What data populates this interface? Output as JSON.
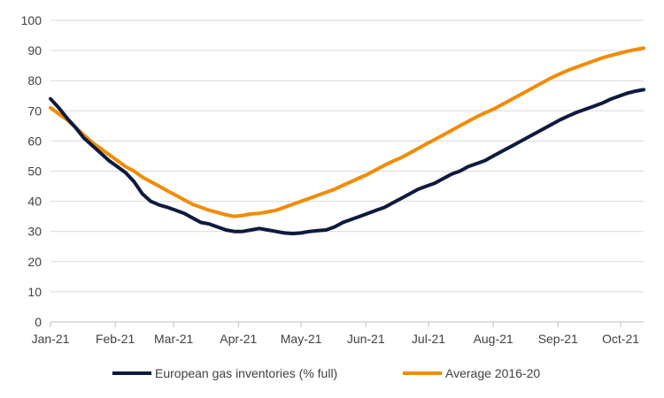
{
  "chart_data": {
    "type": "line",
    "title": "",
    "xlabel": "",
    "ylabel": "",
    "ylim": [
      0,
      100
    ],
    "yticks": [
      0,
      10,
      20,
      30,
      40,
      50,
      60,
      70,
      80,
      90,
      100
    ],
    "xlim": [
      "2021-01-01",
      "2021-10-12"
    ],
    "xticks": [
      {
        "date": "2021-01-01",
        "label": "Jan-21"
      },
      {
        "date": "2021-02-01",
        "label": "Feb-21"
      },
      {
        "date": "2021-03-01",
        "label": "Mar-21"
      },
      {
        "date": "2021-04-01",
        "label": "Apr-21"
      },
      {
        "date": "2021-05-01",
        "label": "May-21"
      },
      {
        "date": "2021-06-01",
        "label": "Jun-21"
      },
      {
        "date": "2021-07-01",
        "label": "Jul-21"
      },
      {
        "date": "2021-08-01",
        "label": "Aug-21"
      },
      {
        "date": "2021-09-01",
        "label": "Sep-21"
      },
      {
        "date": "2021-10-01",
        "label": "Oct-21"
      }
    ],
    "grid": "horizontal",
    "legend_position": "bottom",
    "series": [
      {
        "name": "European gas inventories (% full)",
        "color": "#0e1a3d",
        "points": [
          [
            "2021-01-01",
            74
          ],
          [
            "2021-01-05",
            71
          ],
          [
            "2021-01-09",
            67.5
          ],
          [
            "2021-01-13",
            64.5
          ],
          [
            "2021-01-17",
            61
          ],
          [
            "2021-01-21",
            58.5
          ],
          [
            "2021-01-25",
            56
          ],
          [
            "2021-01-29",
            53.5
          ],
          [
            "2021-02-02",
            51.5
          ],
          [
            "2021-02-06",
            49.5
          ],
          [
            "2021-02-10",
            46.5
          ],
          [
            "2021-02-14",
            42.5
          ],
          [
            "2021-02-18",
            40
          ],
          [
            "2021-02-22",
            38.8
          ],
          [
            "2021-02-26",
            38
          ],
          [
            "2021-03-02",
            37
          ],
          [
            "2021-03-06",
            36
          ],
          [
            "2021-03-10",
            34.5
          ],
          [
            "2021-03-14",
            33
          ],
          [
            "2021-03-18",
            32.5
          ],
          [
            "2021-03-22",
            31.5
          ],
          [
            "2021-03-26",
            30.5
          ],
          [
            "2021-03-30",
            30
          ],
          [
            "2021-04-03",
            30
          ],
          [
            "2021-04-07",
            30.5
          ],
          [
            "2021-04-11",
            31
          ],
          [
            "2021-04-15",
            30.5
          ],
          [
            "2021-04-19",
            30
          ],
          [
            "2021-04-23",
            29.5
          ],
          [
            "2021-04-27",
            29.3
          ],
          [
            "2021-05-01",
            29.5
          ],
          [
            "2021-05-05",
            30
          ],
          [
            "2021-05-09",
            30.3
          ],
          [
            "2021-05-13",
            30.5
          ],
          [
            "2021-05-17",
            31.5
          ],
          [
            "2021-05-21",
            33
          ],
          [
            "2021-05-25",
            34
          ],
          [
            "2021-05-29",
            35
          ],
          [
            "2021-06-02",
            36
          ],
          [
            "2021-06-06",
            37
          ],
          [
            "2021-06-10",
            38
          ],
          [
            "2021-06-14",
            39.5
          ],
          [
            "2021-06-18",
            41
          ],
          [
            "2021-06-22",
            42.5
          ],
          [
            "2021-06-26",
            44
          ],
          [
            "2021-06-30",
            45
          ],
          [
            "2021-07-04",
            46
          ],
          [
            "2021-07-08",
            47.5
          ],
          [
            "2021-07-12",
            49
          ],
          [
            "2021-07-16",
            50
          ],
          [
            "2021-07-20",
            51.5
          ],
          [
            "2021-07-24",
            52.5
          ],
          [
            "2021-07-28",
            53.5
          ],
          [
            "2021-08-01",
            55
          ],
          [
            "2021-08-05",
            56.5
          ],
          [
            "2021-08-09",
            58
          ],
          [
            "2021-08-13",
            59.5
          ],
          [
            "2021-08-17",
            61
          ],
          [
            "2021-08-21",
            62.5
          ],
          [
            "2021-08-25",
            64
          ],
          [
            "2021-08-29",
            65.5
          ],
          [
            "2021-09-02",
            67
          ],
          [
            "2021-09-06",
            68.3
          ],
          [
            "2021-09-10",
            69.5
          ],
          [
            "2021-09-14",
            70.5
          ],
          [
            "2021-09-18",
            71.5
          ],
          [
            "2021-09-22",
            72.5
          ],
          [
            "2021-09-26",
            73.8
          ],
          [
            "2021-09-30",
            74.8
          ],
          [
            "2021-10-04",
            75.8
          ],
          [
            "2021-10-08",
            76.5
          ],
          [
            "2021-10-12",
            77
          ]
        ]
      },
      {
        "name": "Average 2016-20",
        "color": "#f28b00",
        "points": [
          [
            "2021-01-01",
            71
          ],
          [
            "2021-01-05",
            69
          ],
          [
            "2021-01-09",
            67
          ],
          [
            "2021-01-13",
            64.5
          ],
          [
            "2021-01-17",
            62
          ],
          [
            "2021-01-21",
            59.5
          ],
          [
            "2021-01-25",
            57.5
          ],
          [
            "2021-01-29",
            55.5
          ],
          [
            "2021-02-02",
            53.5
          ],
          [
            "2021-02-06",
            51.5
          ],
          [
            "2021-02-10",
            50
          ],
          [
            "2021-02-14",
            48
          ],
          [
            "2021-02-18",
            46.5
          ],
          [
            "2021-02-22",
            45
          ],
          [
            "2021-02-26",
            43.5
          ],
          [
            "2021-03-02",
            42
          ],
          [
            "2021-03-06",
            40.5
          ],
          [
            "2021-03-10",
            39
          ],
          [
            "2021-03-14",
            38
          ],
          [
            "2021-03-18",
            37
          ],
          [
            "2021-03-22",
            36.3
          ],
          [
            "2021-03-26",
            35.5
          ],
          [
            "2021-03-30",
            35
          ],
          [
            "2021-04-03",
            35.3
          ],
          [
            "2021-04-07",
            35.8
          ],
          [
            "2021-04-11",
            36
          ],
          [
            "2021-04-15",
            36.5
          ],
          [
            "2021-04-19",
            37
          ],
          [
            "2021-04-23",
            38
          ],
          [
            "2021-04-27",
            39
          ],
          [
            "2021-05-01",
            40
          ],
          [
            "2021-05-05",
            41
          ],
          [
            "2021-05-09",
            42
          ],
          [
            "2021-05-13",
            43
          ],
          [
            "2021-05-17",
            44
          ],
          [
            "2021-05-21",
            45.3
          ],
          [
            "2021-05-25",
            46.5
          ],
          [
            "2021-05-29",
            47.8
          ],
          [
            "2021-06-02",
            49
          ],
          [
            "2021-06-06",
            50.5
          ],
          [
            "2021-06-10",
            52
          ],
          [
            "2021-06-14",
            53.3
          ],
          [
            "2021-06-18",
            54.5
          ],
          [
            "2021-06-22",
            56
          ],
          [
            "2021-06-26",
            57.5
          ],
          [
            "2021-06-30",
            59
          ],
          [
            "2021-07-04",
            60.5
          ],
          [
            "2021-07-08",
            62
          ],
          [
            "2021-07-12",
            63.5
          ],
          [
            "2021-07-16",
            65
          ],
          [
            "2021-07-20",
            66.5
          ],
          [
            "2021-07-24",
            68
          ],
          [
            "2021-07-28",
            69.3
          ],
          [
            "2021-08-01",
            70.5
          ],
          [
            "2021-08-05",
            72
          ],
          [
            "2021-08-09",
            73.5
          ],
          [
            "2021-08-13",
            75
          ],
          [
            "2021-08-17",
            76.5
          ],
          [
            "2021-08-21",
            78
          ],
          [
            "2021-08-25",
            79.5
          ],
          [
            "2021-08-29",
            81
          ],
          [
            "2021-09-02",
            82.3
          ],
          [
            "2021-09-06",
            83.5
          ],
          [
            "2021-09-10",
            84.5
          ],
          [
            "2021-09-14",
            85.5
          ],
          [
            "2021-09-18",
            86.5
          ],
          [
            "2021-09-22",
            87.5
          ],
          [
            "2021-09-26",
            88.3
          ],
          [
            "2021-09-30",
            89
          ],
          [
            "2021-10-04",
            89.7
          ],
          [
            "2021-10-08",
            90.3
          ],
          [
            "2021-10-12",
            90.8
          ]
        ]
      }
    ]
  }
}
